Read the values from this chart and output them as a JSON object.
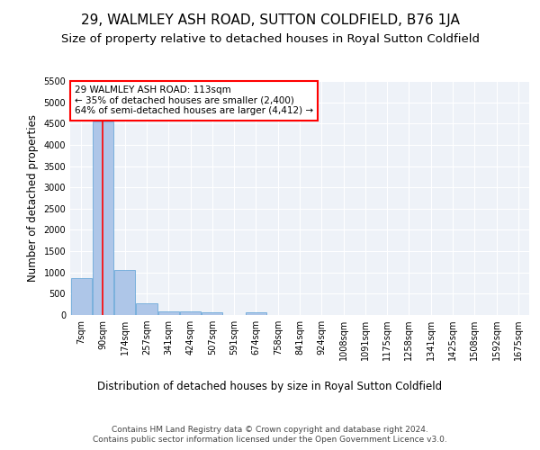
{
  "title": "29, WALMLEY ASH ROAD, SUTTON COLDFIELD, B76 1JA",
  "subtitle": "Size of property relative to detached houses in Royal Sutton Coldfield",
  "xlabel": "Distribution of detached houses by size in Royal Sutton Coldfield",
  "ylabel": "Number of detached properties",
  "footer1": "Contains HM Land Registry data © Crown copyright and database right 2024.",
  "footer2": "Contains public sector information licensed under the Open Government Licence v3.0.",
  "bin_labels": [
    "7sqm",
    "90sqm",
    "174sqm",
    "257sqm",
    "341sqm",
    "424sqm",
    "507sqm",
    "591sqm",
    "674sqm",
    "758sqm",
    "841sqm",
    "924sqm",
    "1008sqm",
    "1091sqm",
    "1175sqm",
    "1258sqm",
    "1341sqm",
    "1425sqm",
    "1508sqm",
    "1592sqm",
    "1675sqm"
  ],
  "bar_values": [
    870,
    4550,
    1060,
    280,
    90,
    80,
    60,
    0,
    55,
    0,
    0,
    0,
    0,
    0,
    0,
    0,
    0,
    0,
    0,
    0,
    0
  ],
  "bar_color": "#aec6e8",
  "bar_edge_color": "#5a9fd4",
  "annotation_text": "29 WALMLEY ASH ROAD: 113sqm\n← 35% of detached houses are smaller (2,400)\n64% of semi-detached houses are larger (4,412) →",
  "annotation_box_color": "white",
  "annotation_box_edge": "red",
  "vline_x": 1,
  "vline_color": "red",
  "ylim": [
    0,
    5500
  ],
  "yticks": [
    0,
    500,
    1000,
    1500,
    2000,
    2500,
    3000,
    3500,
    4000,
    4500,
    5000,
    5500
  ],
  "bg_color": "#eef2f8",
  "plot_bg_color": "#eef2f8",
  "title_fontsize": 11,
  "subtitle_fontsize": 9.5,
  "axis_fontsize": 8.5,
  "tick_fontsize": 7,
  "footer_fontsize": 6.5,
  "annotation_fontsize": 7.5
}
